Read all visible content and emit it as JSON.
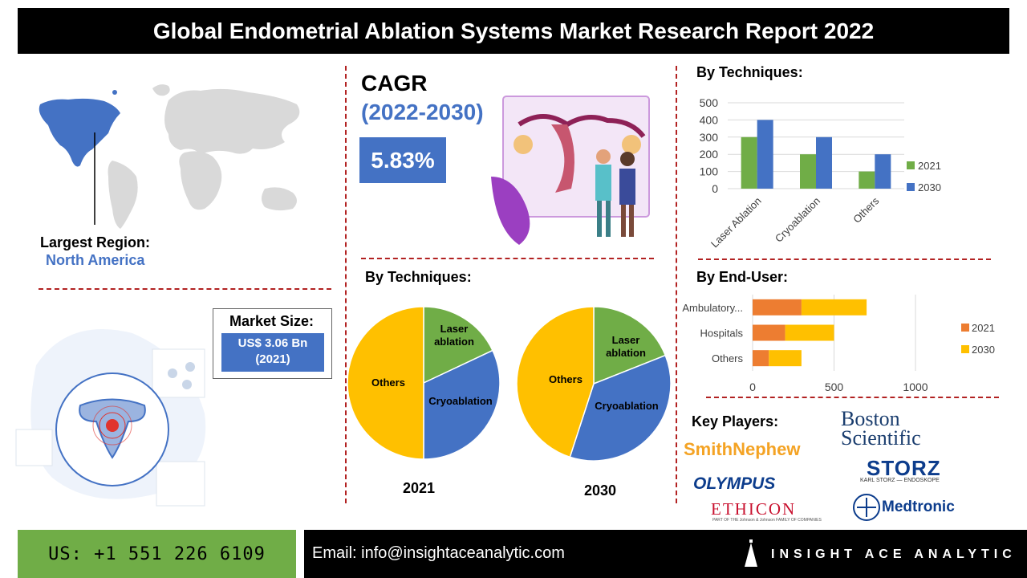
{
  "header": {
    "title": "Global Endometrial Ablation Systems Market Research Report 2022"
  },
  "region": {
    "label": "Largest Region:",
    "value": "North America"
  },
  "cagr": {
    "label": "CAGR",
    "period": "(2022-2030)",
    "value": "5.83%"
  },
  "market_size": {
    "label": "Market Size:",
    "value_line1": "US$ 3.06 Bn",
    "value_line2": "(2021)"
  },
  "pies": {
    "title": "By Techniques:",
    "year1": "2021",
    "year2": "2030"
  },
  "key_players": {
    "label": "Key Players:",
    "logos": [
      "SmithNephew",
      "Boston Scientific",
      "OLYMPUS",
      "STORZ",
      "KARL STORZ — ENDOSKOPE",
      "ETHICON",
      "Medtronic",
      "PART OF THE Johnson & Johnson FAMILY OF COMPANIES"
    ]
  },
  "footer": {
    "phone": "US: +1 551 226 6109",
    "email": "Email: info@insightaceanalytic.com",
    "brand": "INSIGHT ACE ANALYTIC"
  },
  "colors": {
    "green": "#70ad47",
    "blue": "#4472c4",
    "orange": "#ed7d31",
    "yellow": "#ffc000",
    "red_dash": "#b22222"
  },
  "chart_data": [
    {
      "type": "bar",
      "title": "By Techniques:",
      "categories": [
        "Laser Ablation",
        "Cryoablation",
        "Others"
      ],
      "series": [
        {
          "name": "2021",
          "values": [
            300,
            200,
            100
          ],
          "color": "#70ad47"
        },
        {
          "name": "2030",
          "values": [
            400,
            300,
            200
          ],
          "color": "#4472c4"
        }
      ],
      "ylim": [
        0,
        500
      ],
      "yticks": [
        0,
        100,
        200,
        300,
        400,
        500
      ],
      "legend": "right",
      "grid": true
    },
    {
      "type": "bar",
      "orientation": "horizontal",
      "stacked": true,
      "title": "By End-User:",
      "categories": [
        "Ambulatory...",
        "Hospitals",
        "Others"
      ],
      "series": [
        {
          "name": "2021",
          "values": [
            300,
            200,
            100
          ],
          "color": "#ed7d31"
        },
        {
          "name": "2030",
          "values": [
            400,
            300,
            200
          ],
          "color": "#ffc000"
        }
      ],
      "xlim": [
        0,
        1000
      ],
      "xticks": [
        0,
        500,
        1000
      ],
      "legend": "right",
      "grid": true
    },
    {
      "type": "pie",
      "title": "2021",
      "labels": [
        "Laser ablation",
        "Cryoablation",
        "Others"
      ],
      "values": [
        18,
        32,
        50
      ],
      "colors": [
        "#70ad47",
        "#4472c4",
        "#ffc000"
      ]
    },
    {
      "type": "pie",
      "title": "2030",
      "labels": [
        "Laser ablation",
        "Cryoablation",
        "Others"
      ],
      "values": [
        19,
        36,
        45
      ],
      "colors": [
        "#70ad47",
        "#4472c4",
        "#ffc000"
      ]
    }
  ]
}
